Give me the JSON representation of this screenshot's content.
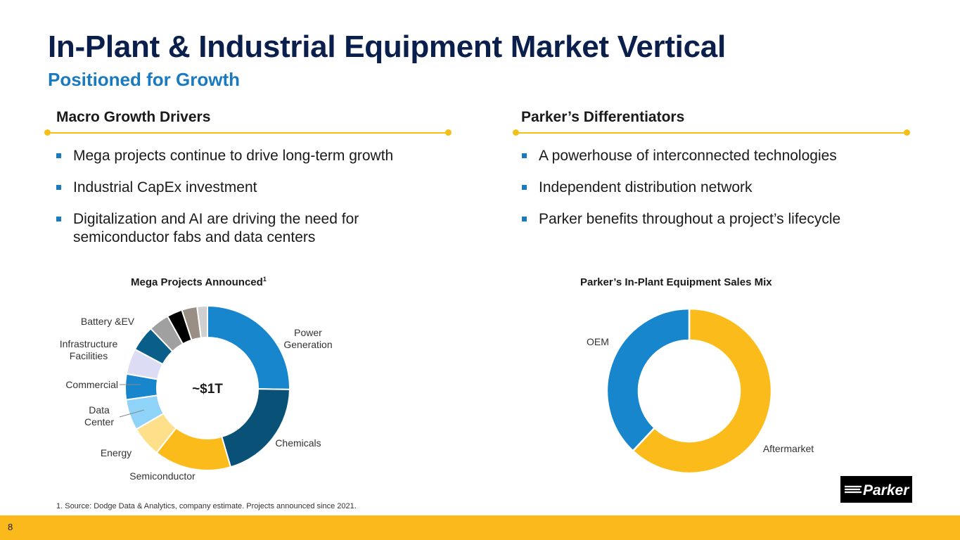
{
  "header": {
    "title": "In-Plant & Industrial Equipment Market Vertical",
    "subtitle": "Positioned for Growth"
  },
  "left_section": {
    "heading": "Macro Growth Drivers",
    "bullets": [
      "Mega projects continue to drive long-term growth",
      "Industrial CapEx investment",
      "Digitalization and AI are driving the need for semiconductor fabs and data centers"
    ]
  },
  "right_section": {
    "heading": "Parker’s Differentiators",
    "bullets": [
      "A powerhouse of interconnected technologies",
      "Independent distribution network",
      "Parker benefits throughout a project’s lifecycle"
    ]
  },
  "chart_data": [
    {
      "type": "pie",
      "title": "Mega Projects Announced",
      "title_superscript": "1",
      "center_label": "~$1T",
      "slices": [
        {
          "label": "Power Generation",
          "value": 25,
          "color": "#1786cc"
        },
        {
          "label": "Chemicals",
          "value": 20,
          "color": "#0a5177"
        },
        {
          "label": "Semiconductor",
          "value": 15,
          "color": "#fbbc1b"
        },
        {
          "label": "Energy",
          "value": 6,
          "color": "#ffe08a"
        },
        {
          "label": "Data Center",
          "value": 6,
          "color": "#8fd3f8"
        },
        {
          "label": "Commercial",
          "value": 5,
          "color": "#1786cc"
        },
        {
          "label": "Infrastructure Facilities",
          "value": 5,
          "color": "#dcdcf5"
        },
        {
          "label": "Battery &EV",
          "value": 5,
          "color": "#0a5e8a"
        },
        {
          "label": "",
          "value": 4,
          "color": "#a0a0a0"
        },
        {
          "label": "",
          "value": 3,
          "color": "#000000"
        },
        {
          "label": "",
          "value": 3,
          "color": "#9a8f85"
        },
        {
          "label": "",
          "value": 2,
          "color": "#d0d0d0"
        }
      ]
    },
    {
      "type": "pie",
      "title": "Parker’s In-Plant Equipment Sales Mix",
      "slices": [
        {
          "label": "Aftermarket",
          "value": 62,
          "color": "#fbbc1b"
        },
        {
          "label": "OEM",
          "value": 38,
          "color": "#1786cc"
        }
      ]
    }
  ],
  "footnote": "1. Source: Dodge Data & Analytics, company estimate. Projects announced since 2021.",
  "page_number": "8",
  "logo": {
    "text": "Parker",
    "colors": {
      "background": "#000000",
      "foreground": "#ffffff"
    }
  },
  "colors": {
    "navy": "#0a1f4b",
    "accent_blue": "#1a7abf",
    "gold": "#fbb91b"
  }
}
